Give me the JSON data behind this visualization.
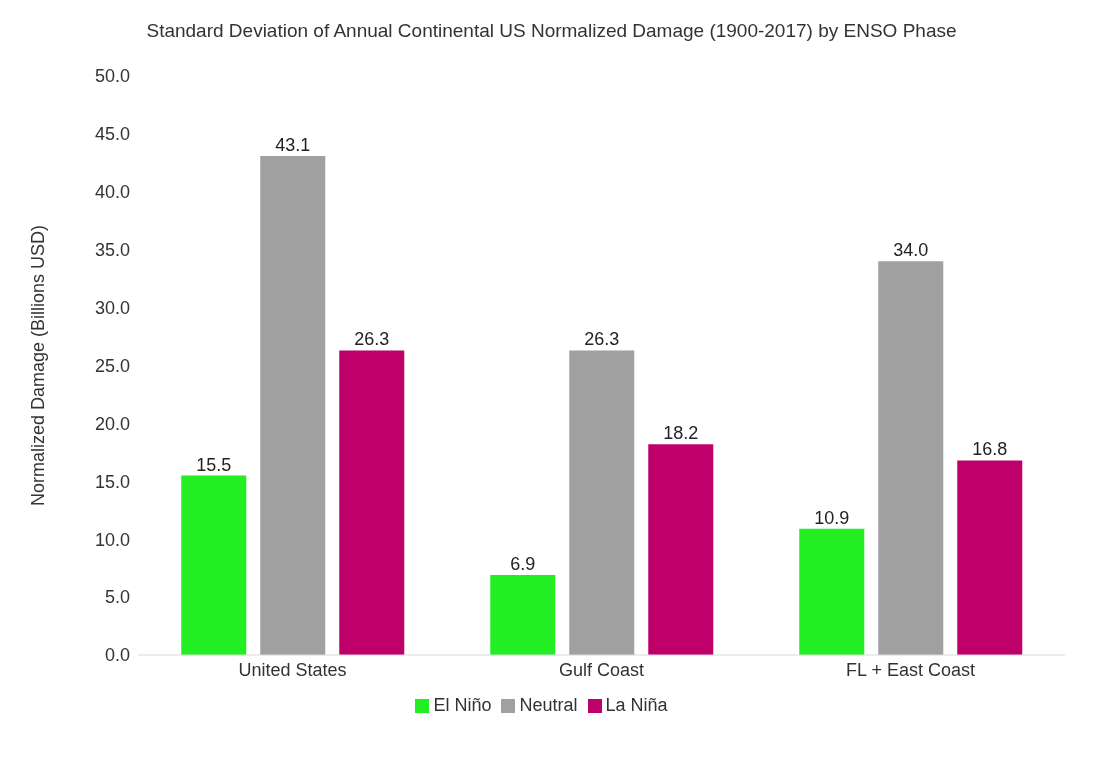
{
  "chart_data": {
    "type": "bar",
    "title": "Standard Deviation of Annual Continental US Normalized Damage (1900-2017) by ENSO Phase",
    "ylabel": "Normalized Damage (Billions USD)",
    "categories": [
      "United States",
      "Gulf Coast",
      "FL + East Coast"
    ],
    "series": [
      {
        "name": "El Niño",
        "color": "#22ee22",
        "values": [
          15.5,
          6.9,
          10.9
        ],
        "value_labels": [
          "15.5",
          "6.9",
          "10.9"
        ]
      },
      {
        "name": "Neutral",
        "color": "#a0a0a0",
        "values": [
          43.1,
          26.3,
          34.0
        ],
        "value_labels": [
          "43.1",
          "26.3",
          "34.0"
        ]
      },
      {
        "name": "La Niña",
        "color": "#c0006a",
        "values": [
          26.3,
          18.2,
          16.8
        ],
        "value_labels": [
          "26.3",
          "18.2",
          "16.8"
        ]
      }
    ],
    "ylim": [
      0,
      50
    ],
    "yticks": [
      {
        "value": 0,
        "label": "0.0"
      },
      {
        "value": 5,
        "label": "5.0"
      },
      {
        "value": 10,
        "label": "10.0"
      },
      {
        "value": 15,
        "label": "15.0"
      },
      {
        "value": 20,
        "label": "20.0"
      },
      {
        "value": 25,
        "label": "25.0"
      },
      {
        "value": 30,
        "label": "30.0"
      },
      {
        "value": 35,
        "label": "35.0"
      },
      {
        "value": 40,
        "label": "40.0"
      },
      {
        "value": 45,
        "label": "45.0"
      },
      {
        "value": 50,
        "label": "50.0"
      }
    ],
    "legend": "bottom"
  }
}
